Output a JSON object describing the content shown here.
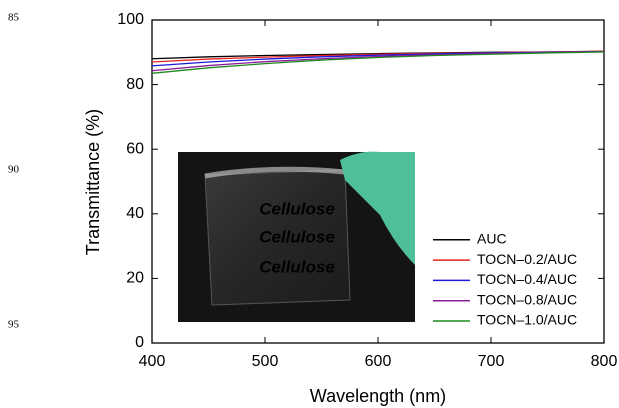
{
  "line_numbers": [
    85,
    90,
    95
  ],
  "chart_data": {
    "type": "line",
    "x_label": "Wavelength (nm)",
    "y_label": "Transmittance (%)",
    "x": [
      400,
      450,
      500,
      550,
      600,
      650,
      700,
      750,
      800
    ],
    "series": [
      {
        "name": "AUC",
        "color": "#000000",
        "values": [
          88.0,
          88.6,
          89.0,
          89.3,
          89.6,
          89.8,
          90.0,
          90.1,
          90.3
        ]
      },
      {
        "name": "TOCN–0.2/AUC",
        "color": "#e8261c",
        "values": [
          87.0,
          87.9,
          88.5,
          89.0,
          89.4,
          89.7,
          89.9,
          90.1,
          90.3
        ]
      },
      {
        "name": "TOCN–0.4/AUC",
        "color": "#1a1ad8",
        "values": [
          85.8,
          87.0,
          87.9,
          88.6,
          89.1,
          89.5,
          89.8,
          90.0,
          90.2
        ]
      },
      {
        "name": "TOCN–0.8/AUC",
        "color": "#8b1a9a",
        "values": [
          84.3,
          85.9,
          87.1,
          88.0,
          88.7,
          89.2,
          89.6,
          89.9,
          90.2
        ]
      },
      {
        "name": "TOCN–1.0/AUC",
        "color": "#1f8a1f",
        "values": [
          83.5,
          85.2,
          86.5,
          87.6,
          88.4,
          89.0,
          89.4,
          89.8,
          90.1
        ]
      }
    ],
    "xlim": [
      400,
      800
    ],
    "xticks": [
      400,
      500,
      600,
      700,
      800
    ],
    "ylim": [
      0,
      100
    ],
    "yticks": [
      0,
      20,
      40,
      60,
      80,
      100
    ],
    "legend": "lower right",
    "inset_labels": [
      {
        "text": "Cellulose",
        "color": "#e2554c"
      },
      {
        "text": "Cellulose",
        "color": "#ece13c"
      },
      {
        "text": "Cellulose",
        "color": "#3d5fb8"
      }
    ]
  }
}
